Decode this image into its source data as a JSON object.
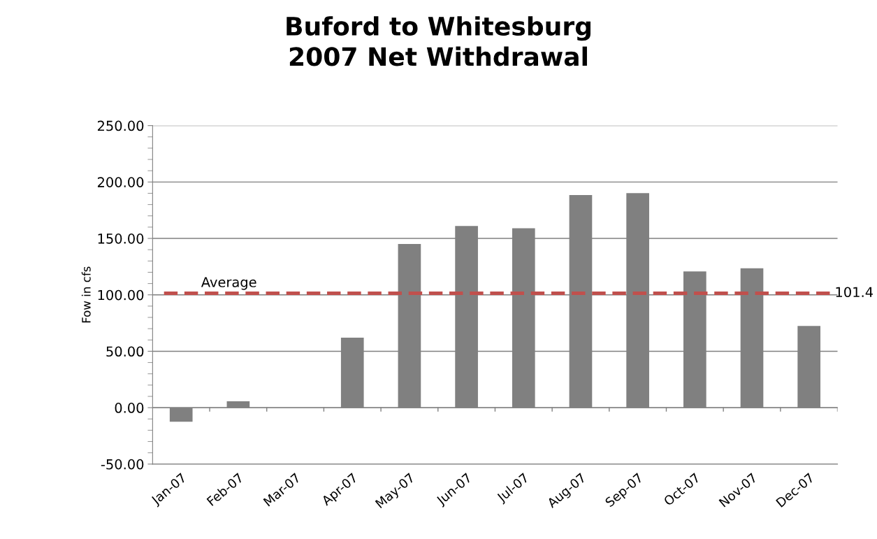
{
  "chart_data": {
    "type": "bar",
    "title": "Buford to Whitesburg\n2007 Net Withdrawal",
    "ylabel": "Fow in cfs",
    "categories": [
      "Jan-07",
      "Feb-07",
      "Mar-07",
      "Apr-07",
      "May-07",
      "Jun-07",
      "Jul-07",
      "Aug-07",
      "Sep-07",
      "Oct-07",
      "Nov-07",
      "Dec-07"
    ],
    "values": [
      -12.4,
      5.7,
      0,
      62.0,
      145.1,
      161.0,
      159.0,
      188.4,
      190.1,
      120.8,
      123.5,
      72.4
    ],
    "color": "#808080",
    "ylim": [
      -50,
      250
    ],
    "yticks": [
      {
        "value": -50,
        "label": "-50.00"
      },
      {
        "value": 0,
        "label": "0.00"
      },
      {
        "value": 50,
        "label": "50.00"
      },
      {
        "value": 100,
        "label": "100.00"
      },
      {
        "value": 150,
        "label": "150.00"
      },
      {
        "value": 200,
        "label": "200.00"
      },
      {
        "value": 250,
        "label": "250.00"
      }
    ],
    "grid": "y",
    "ref_lines": [
      {
        "axis": "y",
        "value": 101.4,
        "label": "Average",
        "color": "#c0504d",
        "line_style": "dashed"
      }
    ],
    "annotations": [
      "101.4"
    ]
  }
}
